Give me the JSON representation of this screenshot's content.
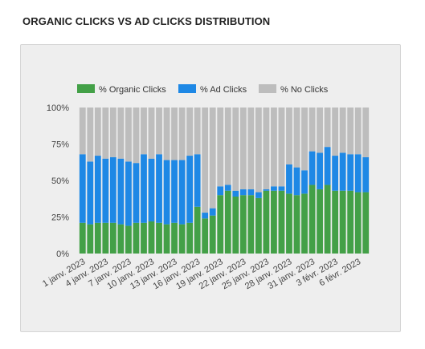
{
  "title": "ORGANIC CLICKS VS AD CLICKS DISTRIBUTION",
  "chart_data": {
    "type": "bar",
    "stacked": true,
    "legend_position": "top-left",
    "grid": false,
    "ylim": [
      0,
      100
    ],
    "y_ticks": [
      "100%",
      "75%",
      "50%",
      "25%",
      "0%"
    ],
    "x_tick_labels": [
      "1 janv. 2023",
      "4 janv. 2023",
      "7 janv. 2023",
      "10 janv. 2023",
      "13 janv. 2023",
      "16 janv. 2023",
      "19 janv. 2023",
      "22 janv. 2023",
      "25 janv. 2023",
      "28 janv. 2023",
      "31 janv. 2023",
      "3 févr. 2023",
      "6 févr. 2023"
    ],
    "categories": [
      "1 janv.",
      "2 janv.",
      "3 janv.",
      "4 janv.",
      "5 janv.",
      "6 janv.",
      "7 janv.",
      "8 janv.",
      "9 janv.",
      "10 janv.",
      "11 janv.",
      "12 janv.",
      "13 janv.",
      "14 janv.",
      "15 janv.",
      "16 janv.",
      "17 janv.",
      "18 janv.",
      "19 janv.",
      "20 janv.",
      "21 janv.",
      "22 janv.",
      "23 janv.",
      "24 janv.",
      "25 janv.",
      "26 janv.",
      "27 janv.",
      "28 janv.",
      "29 janv.",
      "30 janv.",
      "31 janv.",
      "1 févr.",
      "2 févr.",
      "3 févr.",
      "4 févr.",
      "5 févr.",
      "6 févr.",
      "7 févr."
    ],
    "series": [
      {
        "name": "% Organic Clicks",
        "color": "#43a047",
        "values": [
          21,
          20,
          21,
          21,
          21,
          20,
          19,
          21,
          21,
          22,
          21,
          20,
          21,
          20,
          21,
          32,
          24,
          26,
          40,
          43,
          39,
          40,
          40,
          38,
          43,
          43,
          43,
          41,
          40,
          41,
          47,
          44,
          47,
          43,
          43,
          43,
          42,
          42
        ]
      },
      {
        "name": "% Ad Clicks",
        "color": "#1e88e5",
        "values": [
          47,
          43,
          46,
          44,
          45,
          45,
          44,
          41,
          47,
          43,
          47,
          44,
          43,
          44,
          46,
          36,
          4,
          5,
          6,
          4,
          4,
          4,
          4,
          4,
          1,
          3,
          3,
          20,
          19,
          16,
          23,
          25,
          26,
          24,
          26,
          25,
          26,
          24
        ]
      },
      {
        "name": "% No Clicks",
        "color": "#bdbdbd",
        "values": [
          32,
          37,
          33,
          35,
          34,
          35,
          37,
          38,
          32,
          35,
          32,
          36,
          36,
          36,
          33,
          32,
          72,
          69,
          54,
          53,
          57,
          56,
          56,
          58,
          56,
          54,
          54,
          39,
          41,
          43,
          30,
          31,
          27,
          33,
          31,
          32,
          32,
          34
        ]
      }
    ]
  }
}
